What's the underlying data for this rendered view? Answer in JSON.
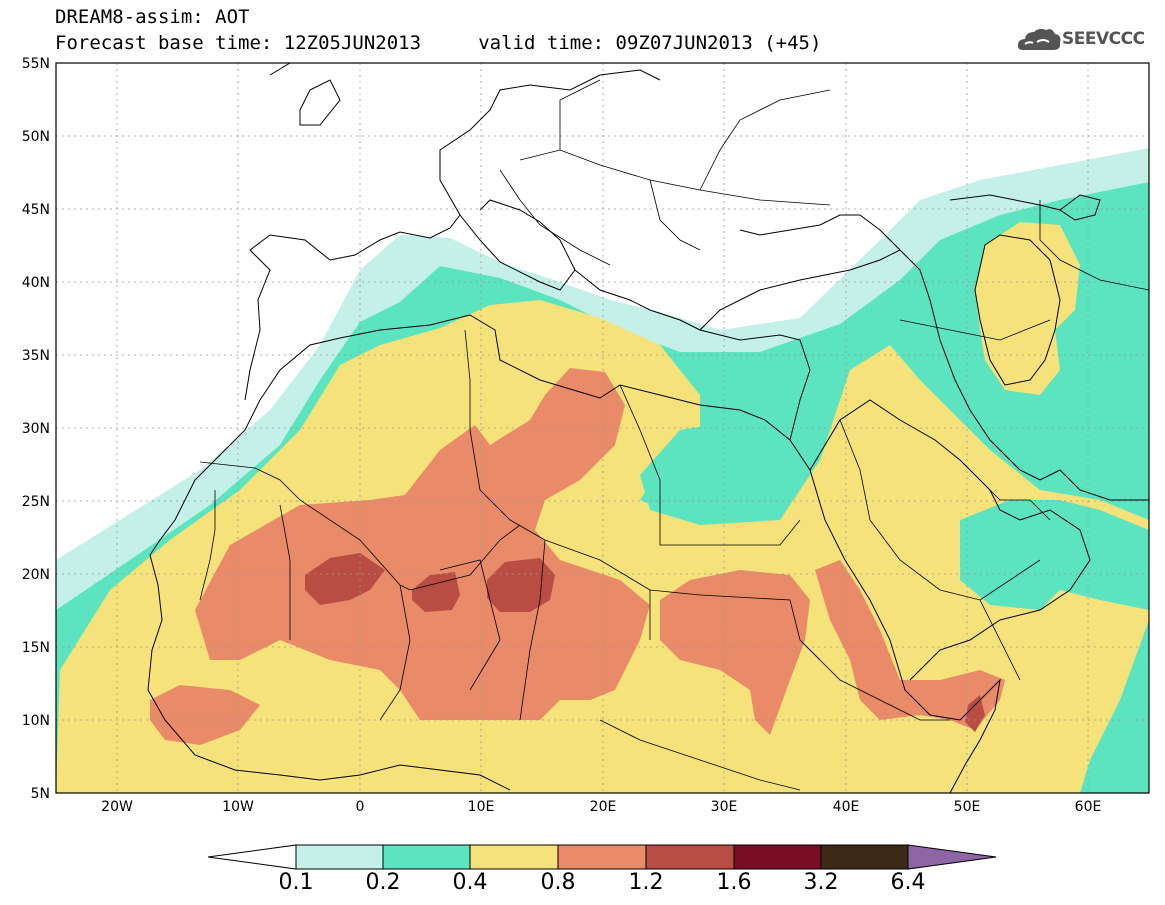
{
  "header": {
    "line1": "DREAM8-assim: AOT",
    "line2": "Forecast base time: 12Z05JUN2013     valid time: 09Z07JUN2013 (+45)"
  },
  "logo": {
    "text": "SEEVCCC",
    "icon": "cloud-icon"
  },
  "map_extent": {
    "lon": [
      -25,
      65
    ],
    "lat": [
      5,
      55
    ]
  },
  "lat_ticks": [
    "5N",
    "10N",
    "15N",
    "20N",
    "25N",
    "30N",
    "35N",
    "40N",
    "45N",
    "50N",
    "55N"
  ],
  "lon_ticks": [
    "20W",
    "10W",
    "0",
    "10E",
    "20E",
    "30E",
    "40E",
    "50E",
    "60E"
  ],
  "legend": {
    "levels": [
      "0.1",
      "0.2",
      "0.4",
      "0.8",
      "1.2",
      "1.6",
      "3.2",
      "6.4"
    ],
    "colors": [
      "#ffffff",
      "#c4f0e8",
      "#5ce3c0",
      "#f6e27a",
      "#e98a68",
      "#b94d43",
      "#7a0c24",
      "#3d2a16",
      "#8e66a6"
    ]
  },
  "colors": {
    "c01": "#c4f0e8",
    "c02": "#5ce3c0",
    "c04": "#f6e27a",
    "c08": "#e98a68",
    "c12": "#b94d43",
    "c16": "#7a0c24"
  }
}
